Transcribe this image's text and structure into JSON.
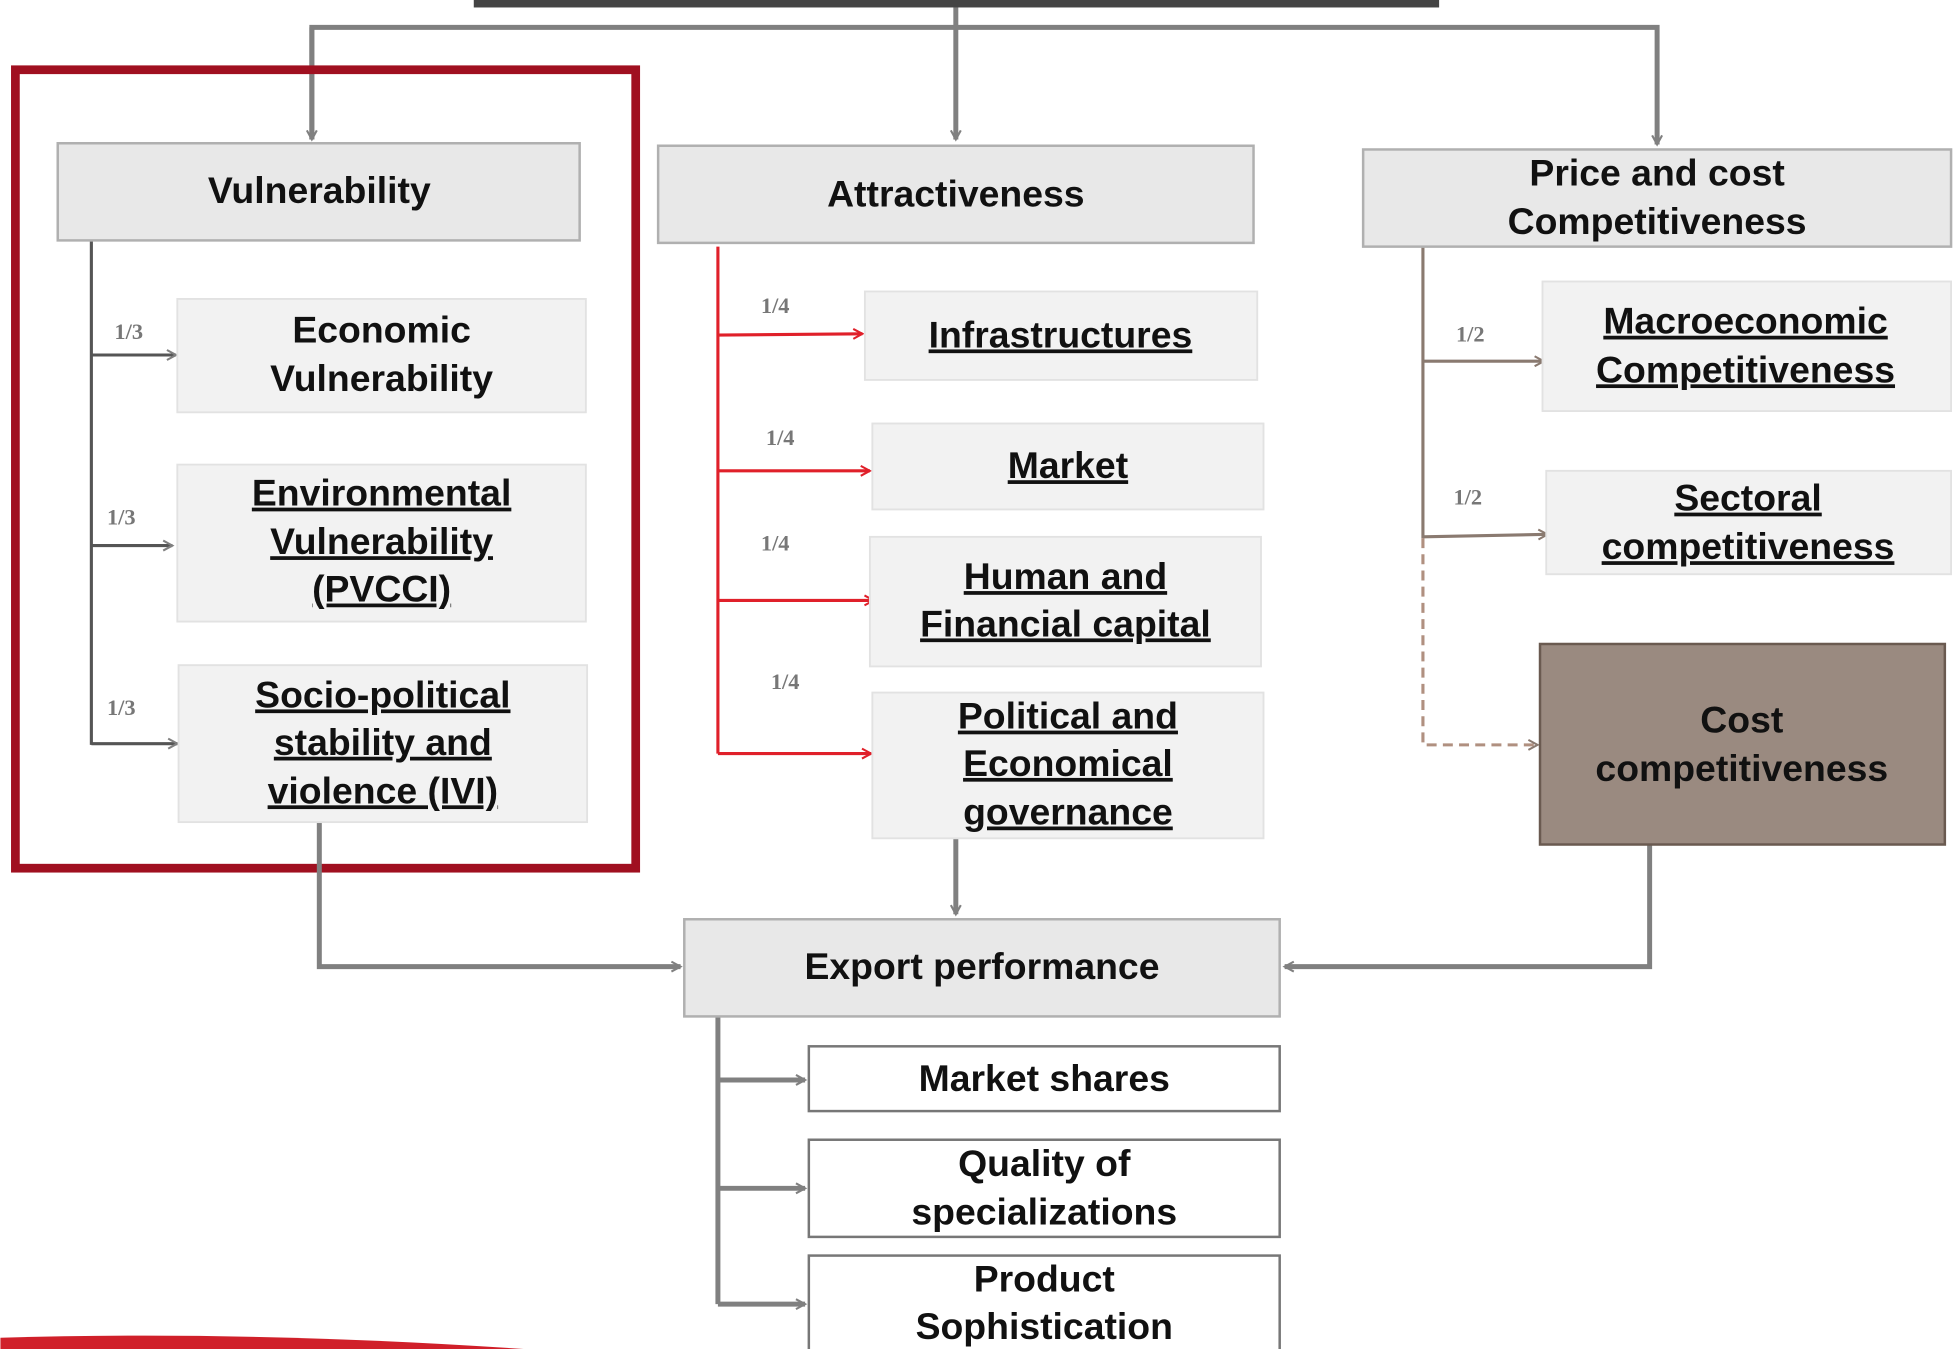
{
  "groups": [
    {
      "title": [
        "Vulnerability"
      ],
      "items": [
        {
          "label": [
            "Economic",
            "Vulnerability"
          ],
          "weight": "1/3"
        },
        {
          "label": [
            "Environmental",
            "Vulnerability",
            "(PVCCI)"
          ],
          "weight": "1/3"
        },
        {
          "label": [
            "Socio-political",
            "stability and",
            "violence (IVI)"
          ],
          "weight": "1/3"
        }
      ]
    },
    {
      "title": [
        "Attractiveness"
      ],
      "items": [
        {
          "label": [
            "Infrastructures"
          ],
          "weight": "1/4"
        },
        {
          "label": [
            "Market"
          ],
          "weight": "1/4"
        },
        {
          "label": [
            "Human and",
            "Financial capital"
          ],
          "weight": "1/4"
        },
        {
          "label": [
            "Political and",
            "Economical",
            "governance"
          ],
          "weight": "1/4"
        }
      ]
    },
    {
      "title": [
        "Price and cost",
        "Competitiveness"
      ],
      "items": [
        {
          "label": [
            "Macroeconomic",
            "Competitiveness"
          ],
          "weight": "1/2"
        },
        {
          "label": [
            "Sectoral",
            "competitiveness"
          ],
          "weight": "1/2"
        },
        {
          "label": [
            "Cost",
            "competitiveness"
          ]
        }
      ]
    }
  ],
  "export": {
    "title": [
      "Export performance"
    ],
    "items": [
      [
        "Market shares"
      ],
      [
        "Quality of",
        "specializations"
      ],
      [
        "Product",
        "Sophistication"
      ]
    ]
  }
}
